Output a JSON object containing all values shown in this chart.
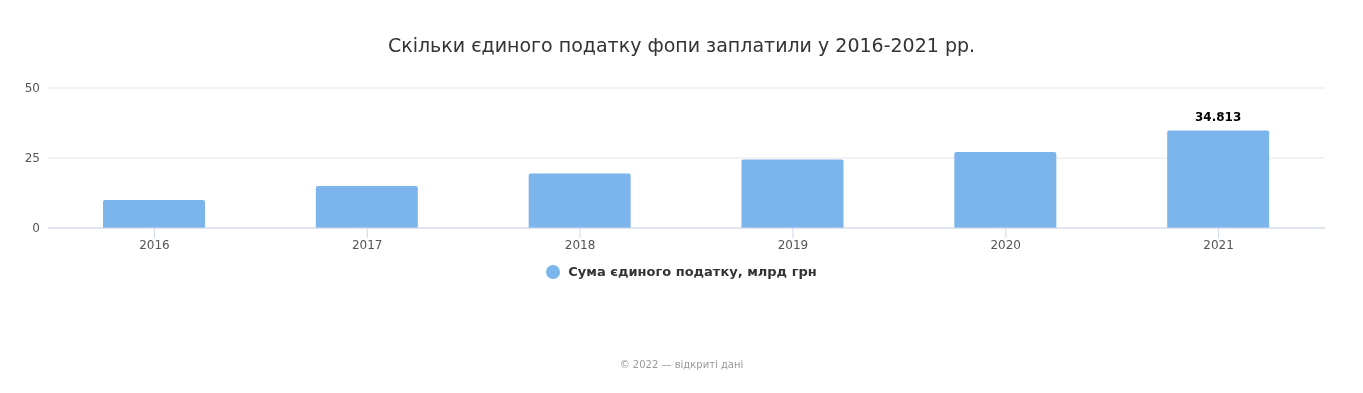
{
  "chart_data": {
    "type": "bar",
    "title": "Скільки єдиного податку фопи заплатили у 2016-2021 рр.",
    "categories": [
      "2016",
      "2017",
      "2018",
      "2019",
      "2020",
      "2021"
    ],
    "series": [
      {
        "name": "Сума єдиного податку, млрд грн",
        "color": "#7cb5ec",
        "values": [
          10,
          15,
          19.5,
          24.5,
          27.1,
          34.813
        ],
        "value_labels": [
          null,
          null,
          null,
          null,
          null,
          "34.813"
        ]
      }
    ],
    "ylim": [
      0,
      50
    ],
    "yticks": [
      0,
      25,
      50
    ],
    "grid": "y",
    "legend": "bottom",
    "annotations": [
      "© 2022 — відкриті дані"
    ]
  }
}
